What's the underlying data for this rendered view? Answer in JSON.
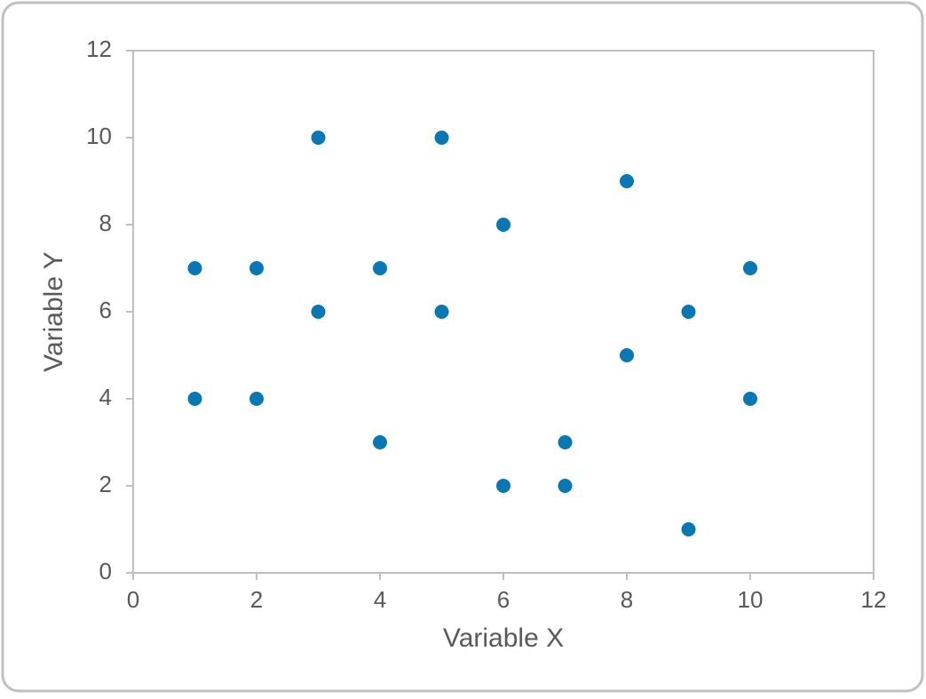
{
  "chart_data": {
    "type": "scatter",
    "x_label": "Variable X",
    "y_label": "Variable Y",
    "x": [
      1,
      1,
      2,
      2,
      3,
      3,
      4,
      4,
      5,
      5,
      6,
      6,
      7,
      7,
      8,
      8,
      9,
      9,
      10,
      10
    ],
    "values": [
      7,
      4,
      7,
      4,
      10,
      6,
      7,
      3,
      10,
      6,
      8,
      2,
      3,
      2,
      9,
      5,
      6,
      1,
      7,
      4
    ],
    "color": "#0a77b5",
    "xlim": [
      0,
      12
    ],
    "xticks": [
      0,
      2,
      4,
      6,
      8,
      10,
      12
    ],
    "ylim": [
      0,
      12
    ],
    "yticks": [
      0,
      2,
      4,
      6,
      8,
      10,
      12
    ],
    "grid": false
  }
}
